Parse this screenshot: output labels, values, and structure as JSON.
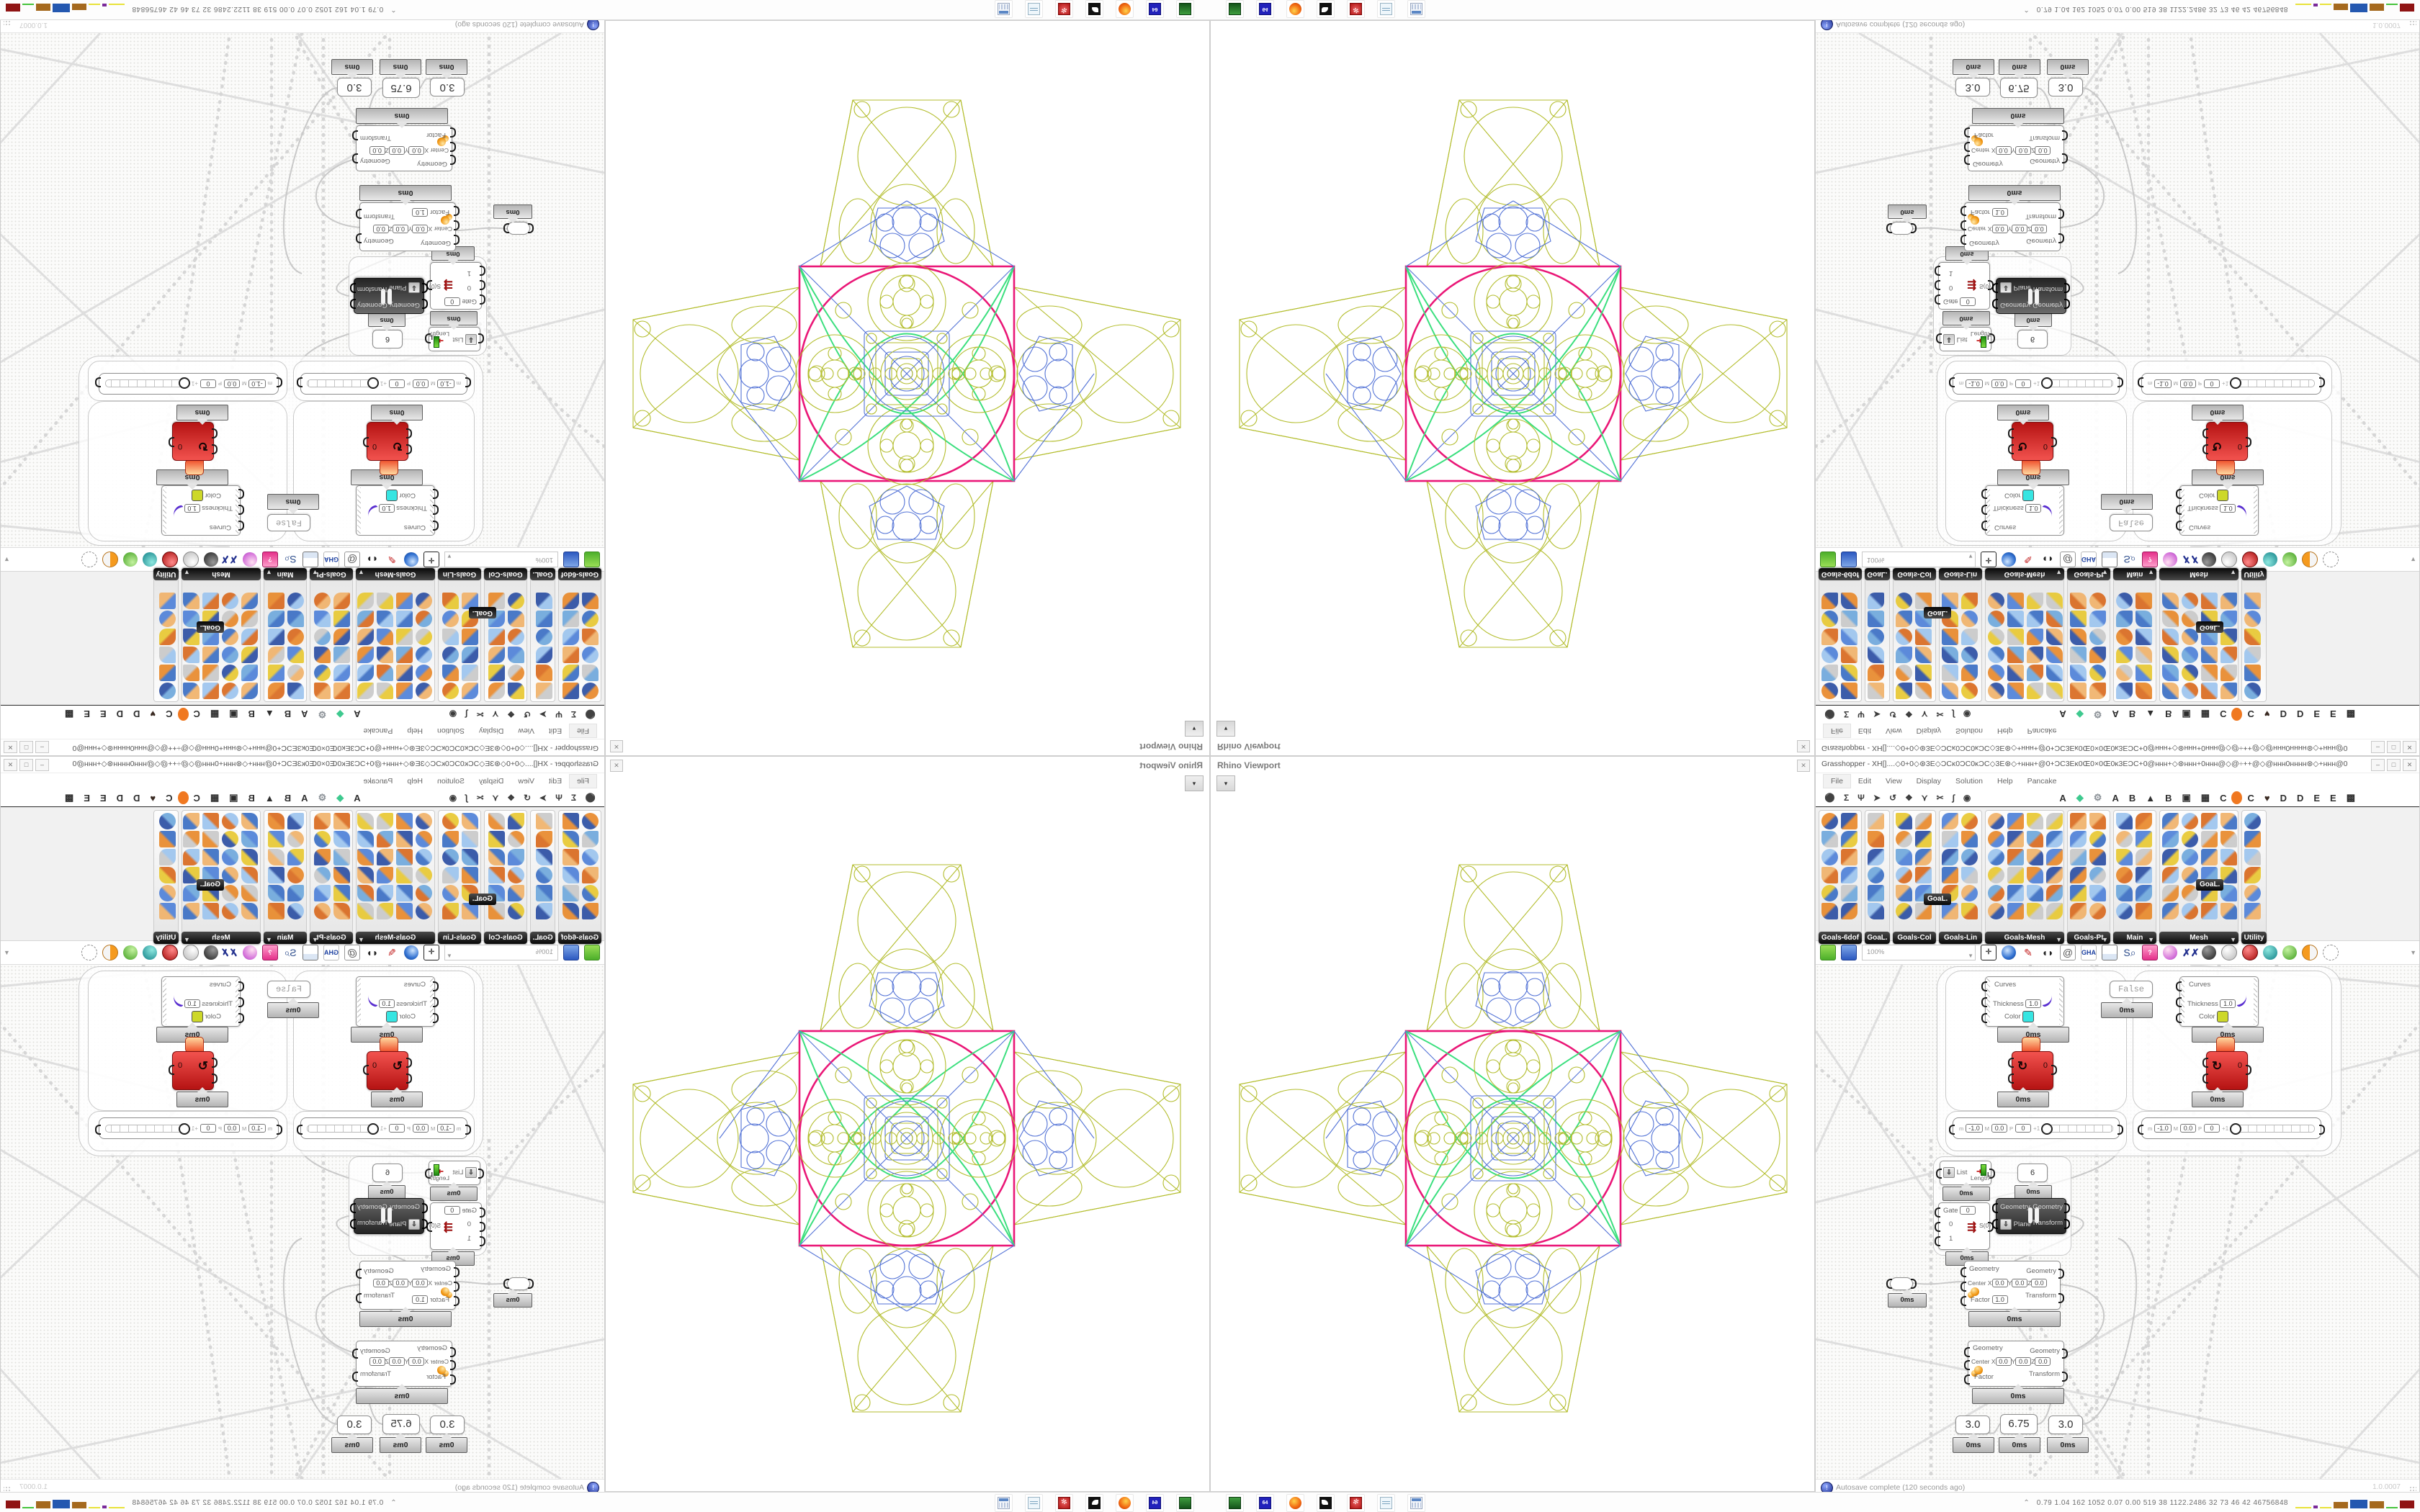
{
  "rhino": {
    "title": "Rhino Viewport",
    "close_button": "✕",
    "dropdown_glyph": "▾"
  },
  "grasshopper": {
    "title": "Grasshopper - XH[]....◇0+0◇⊛3E◇ƆCĸ0ƆC0ĸƆC◇3E⊛◇+ʜʜʜ+@0+ƆC3Eĸ0Œ0×0Œ0ĸ3EƆC+0@ʜʜʜ+◇⊛ʜʜʜ+0ʜʜʜ@◇@÷++@◇@ʜʜʜ0ʜʜʜʜ⊛◇+ʜʜʜ@0+ƆC3Eĸ0Œ0×0...",
    "window_buttons": {
      "minimize": "–",
      "maximize": "□",
      "close": "✕"
    },
    "menu": [
      "File",
      "Edit",
      "View",
      "Display",
      "Solution",
      "Help",
      "Pancake"
    ],
    "tool_glyphs": [
      "⚫",
      "Σ",
      "Ψ",
      "➤",
      "↺",
      "❖",
      "⋎",
      "✂",
      "∫",
      "◉"
    ],
    "tabs": [
      "A",
      "◆",
      "⚙",
      "A",
      "B",
      "▲",
      "B",
      "▣",
      "▦",
      "C",
      "",
      "C",
      "♥",
      "D",
      "D",
      "E",
      "E",
      "▩"
    ],
    "ribbon_groups": [
      {
        "label": "Goals-6dof",
        "cols": 2,
        "arrow": false
      },
      {
        "label": "GoaL.",
        "cols": 1,
        "arrow": false
      },
      {
        "label": "Goals-Col",
        "cols": 2,
        "arrow": false
      },
      {
        "label": "Goals-Lin",
        "cols": 2,
        "arrow": false
      },
      {
        "label": "Goals-Mesh",
        "cols": 4,
        "arrow": true
      },
      {
        "label": "Goals-Pt",
        "cols": 2,
        "arrow": true
      },
      {
        "label": "Main",
        "cols": 2,
        "arrow": true
      },
      {
        "label": "Mesh",
        "cols": 4,
        "arrow": true
      },
      {
        "label": "Utility",
        "cols": 1,
        "arrow": false
      }
    ],
    "overflow_button": "GoaL.",
    "canvas_toolbar": {
      "zoom_level": "100%",
      "gha_label": "GHA",
      "at_label": "@",
      "gift_label": "?"
    },
    "ms_label": "0ms",
    "status": {
      "autosave": "Autosave complete (120 seconds ago)",
      "version": "1.0.0007"
    },
    "components": {
      "preview": {
        "curves": "Curves",
        "thickness": "Thickness",
        "thickness_value": "1.0",
        "color": "Color",
        "color_swatch_left": "#37e5e2",
        "color_swatch_right": "#cdd829"
      },
      "toggle_false": "False",
      "solver_counter": "0",
      "domain_slider": {
        "m": "m",
        "m_value": "-1.0",
        "M": "M",
        "M_value": "0.0",
        "P": "P",
        "P_value": "0",
        "tick": "+1"
      },
      "list_length": {
        "list": "List",
        "length": "Length"
      },
      "panel_six": "6",
      "stream_filter": {
        "gate": "Gate",
        "gate_value": "0",
        "input0": "0",
        "input1": "1",
        "icon": "⇶",
        "output": "S(0)"
      },
      "orient": {
        "geometry": "Geometry",
        "plane": "Plane",
        "geometry_out": "Geometry",
        "transform_out": "Transform"
      },
      "scale": {
        "geometry": "Geometry",
        "center": "Center",
        "x": "X",
        "y": "Y",
        "z": "Z",
        "xyz_value": "0.0",
        "factor": "Factor",
        "factor_value": "1.0",
        "geometry_out": "Geometry",
        "transform_out": "Transform"
      },
      "number_sliders": [
        "3.0",
        "6.75",
        "3.0"
      ]
    }
  },
  "taskbar": {
    "icons": [
      "system-green",
      "floppy-64",
      "firefox",
      "gimp",
      "package-red",
      "notepad",
      "calculator"
    ],
    "floppy_label": "64",
    "tray_chevron": "⌃",
    "tray_text": "0.79   1.04   162   1052   0.07   0.00   519   38   1122.2486   32   73   46   42   46756848"
  },
  "pattern": {
    "colors": {
      "olive": "#b3bd2d",
      "blue": "#5272d6",
      "magenta": "#ea1777",
      "green": "#3bdf7e"
    }
  }
}
